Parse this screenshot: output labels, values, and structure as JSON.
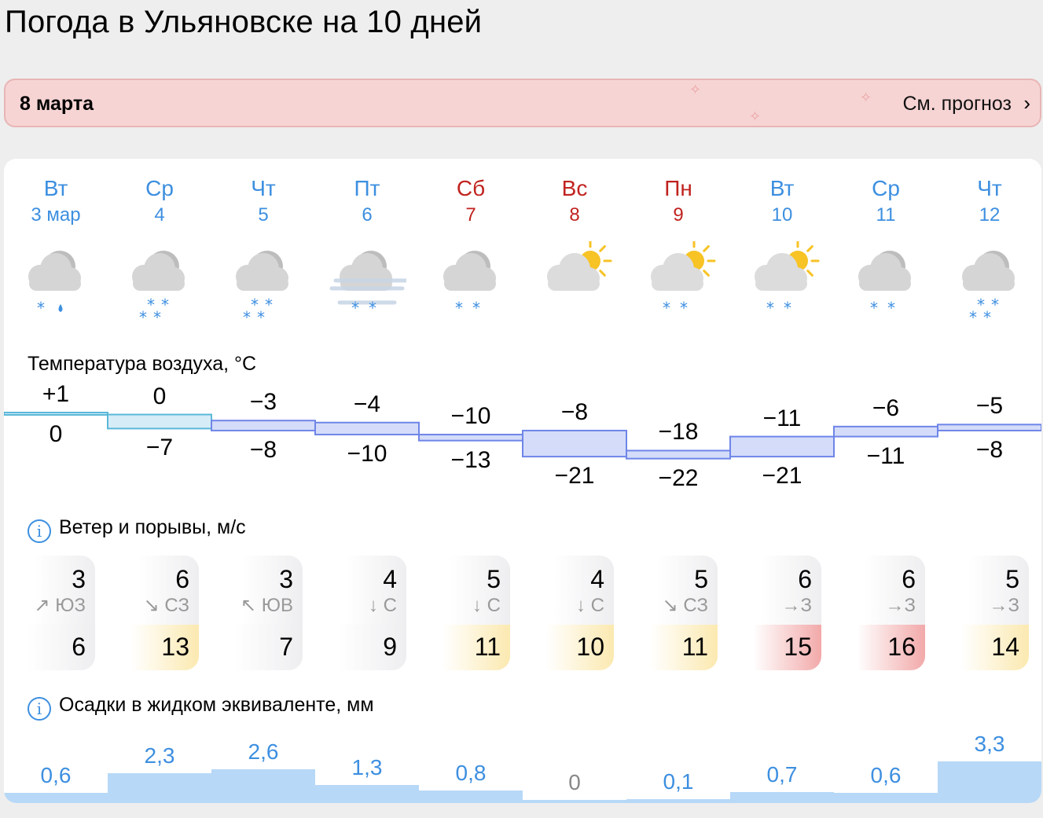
{
  "title": "Погода в Ульяновске на 10 дней",
  "banner": {
    "date": "8 марта",
    "link": "См. прогноз"
  },
  "colors": {
    "weekday": "#3d8fe0",
    "weekend": "#c0231f",
    "precip": "#b7d8f7",
    "gust_calm": "#eeeef0",
    "gust_moderate": "#fbe9b0",
    "gust_strong": "#f2a9a9"
  },
  "days": [
    {
      "dow": "Вт",
      "date": "3 мар",
      "weekend": false,
      "icon": "cloud-snow-rain-icon",
      "tmax": "+1",
      "tmin": "0",
      "tmaxv": 1,
      "tminv": 0,
      "wind": "3",
      "dir": "↗ ЮЗ",
      "gust": "6",
      "gustLevel": "calm",
      "precip": "0,6",
      "precipv": 0.6
    },
    {
      "dow": "Ср",
      "date": "4",
      "weekend": false,
      "icon": "cloud-heavy-snow-icon",
      "tmax": "0",
      "tmin": "−7",
      "tmaxv": 0,
      "tminv": -7,
      "wind": "6",
      "dir": "↘ СЗ",
      "gust": "13",
      "gustLevel": "moderate",
      "precip": "2,3",
      "precipv": 2.3
    },
    {
      "dow": "Чт",
      "date": "5",
      "weekend": false,
      "icon": "cloud-heavy-snow-icon",
      "tmax": "−3",
      "tmin": "−8",
      "tmaxv": -3,
      "tminv": -8,
      "wind": "3",
      "dir": "↖ ЮВ",
      "gust": "7",
      "gustLevel": "calm",
      "precip": "2,6",
      "precipv": 2.6
    },
    {
      "dow": "Пт",
      "date": "6",
      "weekend": false,
      "icon": "cloud-fog-snow-icon",
      "tmax": "−4",
      "tmin": "−10",
      "tmaxv": -4,
      "tminv": -10,
      "wind": "4",
      "dir": "↓ С",
      "gust": "9",
      "gustLevel": "calm",
      "precip": "1,3",
      "precipv": 1.3
    },
    {
      "dow": "Сб",
      "date": "7",
      "weekend": true,
      "icon": "cloud-snow-icon",
      "tmax": "−10",
      "tmin": "−13",
      "tmaxv": -10,
      "tminv": -13,
      "wind": "5",
      "dir": "↓ С",
      "gust": "11",
      "gustLevel": "moderate",
      "precip": "0,8",
      "precipv": 0.8
    },
    {
      "dow": "Вс",
      "date": "8",
      "weekend": true,
      "icon": "sun-cloud-icon",
      "tmax": "−8",
      "tmin": "−21",
      "tmaxv": -8,
      "tminv": -21,
      "wind": "4",
      "dir": "↓ С",
      "gust": "10",
      "gustLevel": "moderate",
      "precip": "0",
      "precipv": 0
    },
    {
      "dow": "Пн",
      "date": "9",
      "weekend": true,
      "icon": "sun-cloud-snow-icon",
      "tmax": "−18",
      "tmin": "−22",
      "tmaxv": -18,
      "tminv": -22,
      "wind": "5",
      "dir": "↘ СЗ",
      "gust": "11",
      "gustLevel": "moderate",
      "precip": "0,1",
      "precipv": 0.1
    },
    {
      "dow": "Вт",
      "date": "10",
      "weekend": false,
      "icon": "sun-cloud-snow-icon",
      "tmax": "−11",
      "tmin": "−21",
      "tmaxv": -11,
      "tminv": -21,
      "wind": "6",
      "dir": "→З",
      "gust": "15",
      "gustLevel": "strong",
      "precip": "0,7",
      "precipv": 0.7
    },
    {
      "dow": "Ср",
      "date": "11",
      "weekend": false,
      "icon": "cloud-snow-icon",
      "tmax": "−6",
      "tmin": "−11",
      "tmaxv": -6,
      "tminv": -11,
      "wind": "6",
      "dir": "→З",
      "gust": "16",
      "gustLevel": "strong",
      "precip": "0,6",
      "precipv": 0.6
    },
    {
      "dow": "Чт",
      "date": "12",
      "weekend": false,
      "icon": "cloud-heavy-snow-icon",
      "tmax": "−5",
      "tmin": "−8",
      "tmaxv": -5,
      "tminv": -8,
      "wind": "5",
      "dir": "→З",
      "gust": "14",
      "gustLevel": "moderate",
      "precip": "3,3",
      "precipv": 3.3
    }
  ],
  "sections": {
    "temp": "Температура воздуха, °C",
    "wind": "Ветер и порывы, м/с",
    "precip": "Осадки в жидком эквиваленте, мм"
  }
}
